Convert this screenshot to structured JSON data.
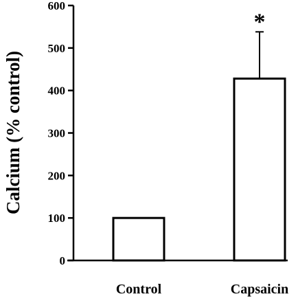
{
  "chart_data": {
    "type": "bar",
    "categories": [
      "Control",
      "Capsaicin"
    ],
    "values": [
      100,
      428
    ],
    "error_bars": [
      0,
      110
    ],
    "annotations": [
      "",
      "*"
    ],
    "title": "",
    "xlabel": "",
    "ylabel": "Calcium (% control)",
    "ylim": [
      0,
      600
    ],
    "yticks": [
      "0",
      "100",
      "200",
      "300",
      "400",
      "500",
      "600"
    ],
    "grid": false,
    "legend": "none",
    "bar_fill": "#ffffff",
    "bar_stroke": "#000000"
  }
}
